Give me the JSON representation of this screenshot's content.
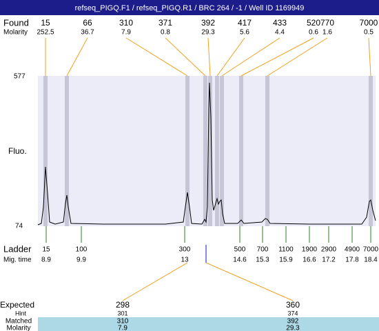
{
  "header": {
    "title": "refseq_PIGQ.F1 / refseq_PIGQ.R1 / BRC 264 / -1 / Well ID 1169949"
  },
  "found": {
    "label": "Found",
    "molarity_label": "Molarity",
    "sizes": [
      "15",
      "66",
      "310",
      "371",
      "392",
      "417",
      "433",
      "520",
      "770",
      "7000"
    ],
    "molarity": [
      "252.5",
      "36.7",
      "7.9",
      "0.8",
      "29.3",
      "5.6",
      "4.4",
      "0.6",
      "1.6",
      "0.5"
    ]
  },
  "axis": {
    "top": "577",
    "bottom": "74",
    "label": "Fluo."
  },
  "ladder": {
    "label": "Ladder",
    "mig_label": "Mig. time",
    "sizes": [
      "15",
      "100",
      "300",
      "500",
      "700",
      "1100",
      "1900",
      "2900",
      "4900",
      "7000"
    ],
    "mig_times": [
      "8.9",
      "9.9",
      "13",
      "14.6",
      "15.3",
      "15.9",
      "16.6",
      "17.2",
      "17.8",
      "18.4"
    ]
  },
  "expected": {
    "label": "Expected",
    "hint_label": "Hint",
    "matched_label": "Matched",
    "molarity_label": "Molarity",
    "values": [
      "298",
      "360"
    ],
    "hint": [
      "301",
      "374"
    ],
    "matched": [
      "310",
      "392"
    ],
    "molarity": [
      "7.9",
      "29.3"
    ]
  }
}
